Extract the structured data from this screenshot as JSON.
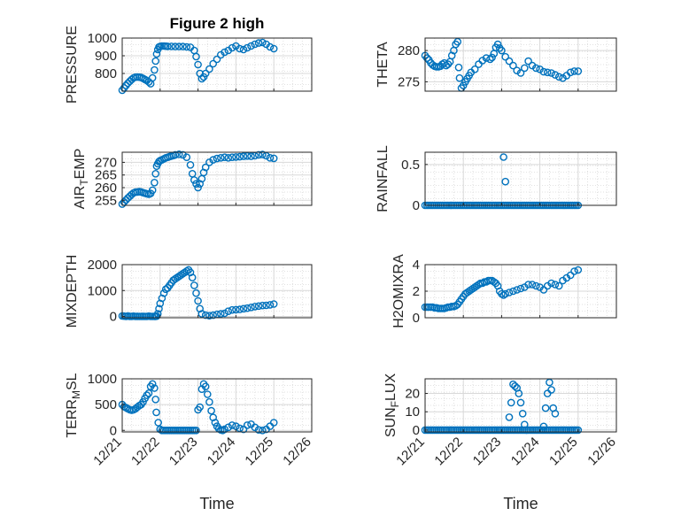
{
  "figure": {
    "title": "Figure 2 high",
    "marker_color": "#0072BD",
    "axis_color": "#262626",
    "grid_color": "#D9D9D9",
    "xtick_labels": [
      "12/21",
      "12/22",
      "12/23",
      "12/24",
      "12/25",
      "12/26"
    ],
    "xlabel": "Time"
  },
  "chart_data": [
    {
      "type": "scatter",
      "panel": "pressure",
      "title": "Figure 2 high",
      "ylabel": "PRESSURE",
      "xlabel": "",
      "xlim": [
        0,
        5
      ],
      "ylim": [
        700,
        1000
      ],
      "yticks": [
        800,
        900,
        1000
      ],
      "grid": true,
      "x": [
        0.0,
        0.05,
        0.1,
        0.15,
        0.2,
        0.25,
        0.3,
        0.35,
        0.4,
        0.45,
        0.5,
        0.55,
        0.6,
        0.65,
        0.7,
        0.75,
        0.8,
        0.85,
        0.88,
        0.91,
        0.94,
        0.97,
        1.0,
        1.05,
        1.1,
        1.15,
        1.2,
        1.3,
        1.4,
        1.5,
        1.6,
        1.7,
        1.8,
        1.9,
        1.95,
        2.0,
        2.05,
        2.1,
        2.15,
        2.2,
        2.3,
        2.4,
        2.5,
        2.6,
        2.7,
        2.8,
        2.9,
        3.0,
        3.1,
        3.2,
        3.3,
        3.4,
        3.5,
        3.6,
        3.7,
        3.8,
        3.9,
        4.0
      ],
      "y": [
        705,
        718,
        732,
        745,
        756,
        766,
        775,
        779,
        780,
        779,
        777,
        772,
        766,
        760,
        752,
        742,
        775,
        820,
        870,
        910,
        935,
        950,
        953,
        955,
        955,
        954,
        953,
        953,
        952,
        952,
        952,
        950,
        948,
        930,
        895,
        850,
        800,
        770,
        780,
        800,
        825,
        855,
        880,
        905,
        920,
        930,
        945,
        955,
        940,
        935,
        945,
        955,
        965,
        972,
        975,
        965,
        950,
        940
      ]
    },
    {
      "type": "scatter",
      "panel": "theta",
      "ylabel": "THETA",
      "xlabel": "",
      "xlim": [
        0,
        5
      ],
      "ylim": [
        273.5,
        282
      ],
      "yticks": [
        275,
        280
      ],
      "grid": true,
      "x": [
        0.0,
        0.05,
        0.1,
        0.15,
        0.2,
        0.25,
        0.3,
        0.35,
        0.4,
        0.45,
        0.5,
        0.55,
        0.6,
        0.65,
        0.7,
        0.75,
        0.8,
        0.85,
        0.88,
        0.9,
        0.95,
        1.0,
        1.05,
        1.1,
        1.15,
        1.2,
        1.3,
        1.4,
        1.5,
        1.6,
        1.7,
        1.75,
        1.8,
        1.85,
        1.9,
        1.95,
        2.0,
        2.1,
        2.2,
        2.3,
        2.4,
        2.5,
        2.6,
        2.7,
        2.8,
        2.9,
        3.0,
        3.1,
        3.2,
        3.3,
        3.4,
        3.5,
        3.6,
        3.7,
        3.8,
        3.9,
        4.0
      ],
      "y": [
        279.2,
        278.8,
        278.5,
        278.0,
        277.7,
        277.5,
        277.4,
        277.4,
        277.5,
        277.8,
        278.0,
        277.6,
        277.8,
        278.2,
        279.2,
        280.0,
        281.0,
        281.4,
        277.3,
        275.6,
        274.0,
        274.4,
        275.0,
        275.5,
        276.0,
        276.5,
        277.0,
        277.8,
        278.4,
        278.8,
        278.6,
        278.9,
        279.5,
        280.5,
        281.0,
        280.4,
        280.0,
        279.0,
        278.3,
        277.6,
        276.8,
        276.4,
        277.2,
        278.3,
        277.6,
        277.2,
        277.0,
        276.6,
        276.5,
        276.4,
        276.1,
        275.8,
        275.6,
        276.0,
        276.5,
        276.7,
        276.7
      ]
    },
    {
      "type": "scatter",
      "panel": "air_temp",
      "ylabel": "AIR_TEMP",
      "ylabel_display": {
        "base": "AIR",
        "sub": "T",
        "rest": "EMP"
      },
      "xlabel": "",
      "xlim": [
        0,
        5
      ],
      "ylim": [
        253,
        274
      ],
      "yticks": [
        255,
        260,
        265,
        270
      ],
      "grid": true,
      "x": [
        0.0,
        0.05,
        0.1,
        0.15,
        0.2,
        0.25,
        0.3,
        0.35,
        0.4,
        0.45,
        0.5,
        0.55,
        0.6,
        0.65,
        0.7,
        0.75,
        0.8,
        0.85,
        0.88,
        0.91,
        0.94,
        0.97,
        1.0,
        1.05,
        1.1,
        1.15,
        1.2,
        1.25,
        1.3,
        1.35,
        1.4,
        1.5,
        1.6,
        1.7,
        1.8,
        1.85,
        1.9,
        1.95,
        2.0,
        2.05,
        2.1,
        2.15,
        2.2,
        2.3,
        2.4,
        2.5,
        2.6,
        2.7,
        2.8,
        2.9,
        3.0,
        3.1,
        3.2,
        3.3,
        3.4,
        3.5,
        3.6,
        3.7,
        3.8,
        3.9,
        4.0
      ],
      "y": [
        253.5,
        254.3,
        255.1,
        255.9,
        256.6,
        257.3,
        257.9,
        258.2,
        258.3,
        258.4,
        258.3,
        258.0,
        257.8,
        257.6,
        257.4,
        257.7,
        259.0,
        262.0,
        265.5,
        268.5,
        269.5,
        270.3,
        270.7,
        271.0,
        271.4,
        271.8,
        272.0,
        272.3,
        272.5,
        272.7,
        273.0,
        273.2,
        273.0,
        272.0,
        269.0,
        265.5,
        263.0,
        261.5,
        260.0,
        261.5,
        263.5,
        266.0,
        268.0,
        270.0,
        271.0,
        271.5,
        271.8,
        272.0,
        271.8,
        272.0,
        272.1,
        272.2,
        272.4,
        272.5,
        272.4,
        272.6,
        273.0,
        273.1,
        272.6,
        271.8,
        271.6
      ]
    },
    {
      "type": "scatter",
      "panel": "rainfall",
      "ylabel": "RAINFALL",
      "xlabel": "",
      "xlim": [
        0,
        5
      ],
      "ylim": [
        0,
        0.65
      ],
      "yticks": [
        0,
        0.5
      ],
      "ytick_labels": [
        "0",
        "0.5"
      ],
      "grid": true,
      "x": [
        0.0,
        0.05,
        0.1,
        0.15,
        0.2,
        0.25,
        0.3,
        0.35,
        0.4,
        0.45,
        0.5,
        0.55,
        0.6,
        0.65,
        0.7,
        0.75,
        0.8,
        0.85,
        0.9,
        0.95,
        1.0,
        1.05,
        1.1,
        1.15,
        1.2,
        1.25,
        1.3,
        1.35,
        1.4,
        1.45,
        1.5,
        1.55,
        1.6,
        1.65,
        1.7,
        1.75,
        1.8,
        1.85,
        1.9,
        1.95,
        2.0,
        2.05,
        2.1,
        2.15,
        2.2,
        2.25,
        2.3,
        2.35,
        2.4,
        2.45,
        2.5,
        2.55,
        2.6,
        2.65,
        2.7,
        2.75,
        2.8,
        2.85,
        2.9,
        2.95,
        3.0,
        3.05,
        3.1,
        3.15,
        3.2,
        3.25,
        3.3,
        3.35,
        3.4,
        3.45,
        3.5,
        3.55,
        3.6,
        3.65,
        3.7,
        3.75,
        3.8,
        3.85,
        3.9,
        3.95,
        4.0,
        2.05,
        2.1
      ],
      "y": [
        0,
        0,
        0,
        0,
        0,
        0,
        0,
        0,
        0,
        0,
        0,
        0,
        0,
        0,
        0,
        0,
        0,
        0,
        0,
        0,
        0,
        0,
        0,
        0,
        0,
        0,
        0,
        0,
        0,
        0,
        0,
        0,
        0,
        0,
        0,
        0,
        0,
        0,
        0,
        0,
        0,
        0,
        0,
        0,
        0,
        0,
        0,
        0,
        0,
        0,
        0,
        0,
        0,
        0,
        0,
        0,
        0,
        0,
        0,
        0,
        0,
        0,
        0,
        0,
        0,
        0,
        0,
        0,
        0,
        0,
        0,
        0,
        0,
        0,
        0,
        0,
        0,
        0,
        0,
        0,
        0,
        0.59,
        0.29
      ]
    },
    {
      "type": "scatter",
      "panel": "mixdepth",
      "ylabel": "MIXDEPTH",
      "xlabel": "",
      "xlim": [
        0,
        5
      ],
      "ylim": [
        -50,
        2000
      ],
      "yticks": [
        0,
        1000,
        2000
      ],
      "grid": true,
      "x": [
        0.0,
        0.05,
        0.1,
        0.15,
        0.2,
        0.25,
        0.3,
        0.35,
        0.4,
        0.45,
        0.5,
        0.55,
        0.6,
        0.65,
        0.7,
        0.75,
        0.8,
        0.85,
        0.88,
        0.91,
        0.94,
        0.97,
        1.0,
        1.05,
        1.1,
        1.15,
        1.2,
        1.25,
        1.3,
        1.35,
        1.4,
        1.45,
        1.5,
        1.55,
        1.6,
        1.65,
        1.7,
        1.75,
        1.8,
        1.85,
        1.9,
        1.95,
        2.0,
        2.05,
        2.1,
        2.2,
        2.3,
        2.4,
        2.5,
        2.6,
        2.7,
        2.8,
        2.9,
        3.0,
        3.1,
        3.2,
        3.3,
        3.4,
        3.5,
        3.6,
        3.7,
        3.8,
        3.9,
        4.0
      ],
      "y": [
        20,
        10,
        0,
        15,
        5,
        0,
        10,
        0,
        5,
        0,
        0,
        5,
        0,
        0,
        10,
        0,
        0,
        5,
        0,
        10,
        100,
        300,
        500,
        700,
        900,
        1050,
        1100,
        1200,
        1300,
        1400,
        1450,
        1500,
        1550,
        1600,
        1650,
        1700,
        1750,
        1800,
        1700,
        1500,
        1200,
        900,
        600,
        300,
        100,
        50,
        30,
        50,
        80,
        100,
        120,
        200,
        250,
        260,
        270,
        300,
        320,
        350,
        380,
        400,
        420,
        430,
        450,
        480
      ]
    },
    {
      "type": "scatter",
      "panel": "h2omixra",
      "ylabel": "H2OMIXRA",
      "xlabel": "",
      "xlim": [
        0,
        5
      ],
      "ylim": [
        0,
        4
      ],
      "yticks": [
        0,
        2,
        4
      ],
      "grid": true,
      "x": [
        0.0,
        0.05,
        0.1,
        0.15,
        0.2,
        0.25,
        0.3,
        0.35,
        0.4,
        0.45,
        0.5,
        0.55,
        0.6,
        0.65,
        0.7,
        0.75,
        0.8,
        0.85,
        0.9,
        0.95,
        1.0,
        1.05,
        1.1,
        1.15,
        1.2,
        1.25,
        1.3,
        1.35,
        1.4,
        1.45,
        1.5,
        1.55,
        1.6,
        1.65,
        1.7,
        1.75,
        1.8,
        1.85,
        1.9,
        1.95,
        2.0,
        2.05,
        2.1,
        2.2,
        2.3,
        2.4,
        2.5,
        2.6,
        2.7,
        2.8,
        2.9,
        3.0,
        3.1,
        3.2,
        3.3,
        3.4,
        3.5,
        3.6,
        3.7,
        3.8,
        3.9,
        4.0
      ],
      "y": [
        0.8,
        0.8,
        0.8,
        0.8,
        0.8,
        0.75,
        0.75,
        0.7,
        0.7,
        0.7,
        0.7,
        0.75,
        0.8,
        0.8,
        0.85,
        0.85,
        0.9,
        1.0,
        1.2,
        1.4,
        1.6,
        1.8,
        1.9,
        2.0,
        2.1,
        2.2,
        2.3,
        2.4,
        2.5,
        2.6,
        2.6,
        2.7,
        2.7,
        2.8,
        2.8,
        2.8,
        2.7,
        2.6,
        2.4,
        2.0,
        1.8,
        1.7,
        1.8,
        1.9,
        2.0,
        2.1,
        2.2,
        2.3,
        2.5,
        2.5,
        2.4,
        2.3,
        2.1,
        2.4,
        2.6,
        2.5,
        2.4,
        2.8,
        3.0,
        3.2,
        3.5,
        3.6
      ]
    },
    {
      "type": "scatter",
      "panel": "terr_msl",
      "ylabel": "TERR_MSL",
      "ylabel_display": {
        "base": "TERR",
        "sub": "M",
        "rest": "SL"
      },
      "xlabel": "Time",
      "xlim": [
        0,
        5
      ],
      "ylim": [
        -30,
        1000
      ],
      "yticks": [
        0,
        500,
        1000
      ],
      "xtick_labels": [
        "12/21",
        "12/22",
        "12/23",
        "12/24",
        "12/25",
        "12/26"
      ],
      "grid": true,
      "x": [
        0.0,
        0.05,
        0.1,
        0.15,
        0.2,
        0.25,
        0.3,
        0.35,
        0.4,
        0.45,
        0.5,
        0.55,
        0.6,
        0.65,
        0.7,
        0.75,
        0.8,
        0.85,
        0.88,
        0.9,
        0.95,
        1.0,
        1.05,
        1.1,
        1.15,
        1.2,
        1.25,
        1.3,
        1.35,
        1.4,
        1.45,
        1.5,
        1.55,
        1.6,
        1.65,
        1.7,
        1.75,
        1.8,
        1.85,
        1.9,
        1.95,
        2.0,
        2.05,
        2.1,
        2.15,
        2.2,
        2.25,
        2.3,
        2.35,
        2.4,
        2.45,
        2.5,
        2.55,
        2.6,
        2.65,
        2.7,
        2.8,
        2.9,
        3.0,
        3.1,
        3.2,
        3.3,
        3.4,
        3.5,
        3.6,
        3.7,
        3.8,
        3.9,
        4.0
      ],
      "y": [
        500,
        460,
        440,
        420,
        400,
        390,
        400,
        420,
        450,
        480,
        500,
        550,
        620,
        680,
        720,
        850,
        900,
        820,
        600,
        350,
        150,
        20,
        0,
        0,
        0,
        0,
        0,
        0,
        0,
        0,
        0,
        0,
        0,
        0,
        0,
        0,
        0,
        0,
        0,
        0,
        0,
        400,
        450,
        800,
        900,
        850,
        700,
        550,
        380,
        250,
        150,
        80,
        30,
        10,
        0,
        20,
        60,
        100,
        80,
        40,
        20,
        100,
        120,
        60,
        10,
        0,
        20,
        80,
        150
      ]
    },
    {
      "type": "scatter",
      "panel": "sun_flux",
      "ylabel": "SUN_FLUX",
      "ylabel_display": {
        "base": "SUN",
        "sub": "F",
        "rest": "LUX"
      },
      "xlabel": "Time",
      "xlim": [
        0,
        5
      ],
      "ylim": [
        -1,
        28
      ],
      "yticks": [
        0,
        10,
        20
      ],
      "xtick_labels": [
        "12/21",
        "12/22",
        "12/23",
        "12/24",
        "12/25",
        "12/26"
      ],
      "grid": true,
      "x": [
        0.0,
        0.05,
        0.1,
        0.15,
        0.2,
        0.25,
        0.3,
        0.35,
        0.4,
        0.45,
        0.5,
        0.55,
        0.6,
        0.65,
        0.7,
        0.75,
        0.8,
        0.85,
        0.9,
        0.95,
        1.0,
        1.05,
        1.1,
        1.15,
        1.2,
        1.25,
        1.3,
        1.35,
        1.4,
        1.45,
        1.5,
        1.55,
        1.6,
        1.65,
        1.7,
        1.75,
        1.8,
        1.85,
        1.9,
        1.95,
        2.0,
        2.05,
        2.1,
        2.15,
        2.2,
        2.25,
        2.3,
        2.35,
        2.4,
        2.45,
        2.5,
        2.55,
        2.6,
        2.65,
        2.7,
        2.75,
        2.8,
        2.85,
        2.9,
        2.95,
        3.0,
        3.05,
        3.1,
        3.15,
        3.2,
        3.25,
        3.3,
        3.35,
        3.4,
        3.45,
        3.5,
        3.55,
        3.6,
        3.65,
        3.7,
        3.75,
        3.8,
        3.85,
        3.9,
        3.95,
        4.0,
        2.2,
        2.25,
        2.3,
        2.35,
        2.4,
        2.45,
        2.5,
        2.55,
        2.6,
        2.65,
        3.1,
        3.15,
        3.2,
        3.25,
        3.3,
        3.35,
        3.4
      ],
      "y": [
        0,
        0,
        0,
        0,
        0,
        0,
        0,
        0,
        0,
        0,
        0,
        0,
        0,
        0,
        0,
        0,
        0,
        0,
        0,
        0,
        0,
        0,
        0,
        0,
        0,
        0,
        0,
        0,
        0,
        0,
        0,
        0,
        0,
        0,
        0,
        0,
        0,
        0,
        0,
        0,
        0,
        0,
        0,
        0,
        0,
        0,
        0,
        0,
        0,
        0,
        0,
        0,
        0,
        0,
        0,
        0,
        0,
        0,
        0,
        0,
        0,
        0,
        0,
        0,
        0,
        0,
        0,
        0,
        0,
        0,
        0,
        0,
        0,
        0,
        0,
        0,
        0,
        0,
        0,
        0,
        0,
        7,
        15,
        25,
        24,
        23,
        20,
        15,
        9,
        3,
        0,
        2,
        12,
        20,
        26,
        22,
        12,
        9
      ]
    }
  ]
}
